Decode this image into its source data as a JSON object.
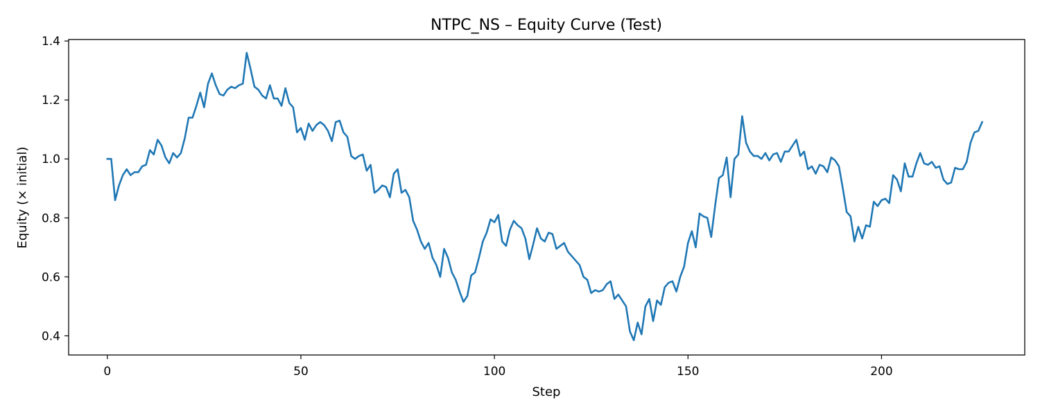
{
  "chart_data": {
    "type": "line",
    "title": "NTPC_NS – Equity Curve (Test)",
    "xlabel": "Step",
    "ylabel": "Equity (× initial)",
    "xlim": [
      -10,
      237
    ],
    "ylim": [
      0.335,
      1.405
    ],
    "xticks": [
      0,
      50,
      100,
      150,
      200
    ],
    "xtick_labels": [
      "0",
      "50",
      "100",
      "150",
      "200"
    ],
    "yticks": [
      0.4,
      0.6,
      0.8,
      1.0,
      1.2,
      1.4
    ],
    "ytick_labels": [
      "0.4",
      "0.6",
      "0.8",
      "1.0",
      "1.2",
      "1.4"
    ],
    "grid": false,
    "series": [
      {
        "color": "#1f77b4",
        "x_start": 0,
        "x_step": 1,
        "values": [
          1.0,
          1.0,
          0.86,
          0.91,
          0.945,
          0.965,
          0.945,
          0.955,
          0.955,
          0.975,
          0.98,
          1.03,
          1.015,
          1.065,
          1.045,
          1.005,
          0.985,
          1.02,
          1.005,
          1.02,
          1.07,
          1.14,
          1.14,
          1.18,
          1.225,
          1.175,
          1.255,
          1.29,
          1.25,
          1.22,
          1.215,
          1.235,
          1.245,
          1.24,
          1.25,
          1.255,
          1.36,
          1.305,
          1.245,
          1.235,
          1.215,
          1.205,
          1.25,
          1.205,
          1.205,
          1.18,
          1.24,
          1.19,
          1.175,
          1.09,
          1.105,
          1.065,
          1.12,
          1.095,
          1.115,
          1.125,
          1.115,
          1.095,
          1.06,
          1.125,
          1.13,
          1.09,
          1.075,
          1.01,
          1.0,
          1.01,
          1.015,
          0.96,
          0.98,
          0.885,
          0.895,
          0.91,
          0.905,
          0.87,
          0.95,
          0.965,
          0.885,
          0.895,
          0.87,
          0.79,
          0.76,
          0.72,
          0.695,
          0.715,
          0.665,
          0.64,
          0.6,
          0.695,
          0.665,
          0.615,
          0.59,
          0.55,
          0.515,
          0.535,
          0.605,
          0.615,
          0.665,
          0.72,
          0.75,
          0.795,
          0.785,
          0.81,
          0.72,
          0.705,
          0.76,
          0.79,
          0.775,
          0.765,
          0.73,
          0.66,
          0.71,
          0.765,
          0.73,
          0.72,
          0.75,
          0.745,
          0.695,
          0.705,
          0.715,
          0.685,
          0.67,
          0.655,
          0.64,
          0.6,
          0.59,
          0.545,
          0.555,
          0.55,
          0.555,
          0.575,
          0.585,
          0.525,
          0.54,
          0.52,
          0.5,
          0.415,
          0.385,
          0.445,
          0.405,
          0.5,
          0.525,
          0.45,
          0.52,
          0.505,
          0.565,
          0.58,
          0.585,
          0.55,
          0.6,
          0.635,
          0.715,
          0.755,
          0.7,
          0.815,
          0.805,
          0.8,
          0.735,
          0.84,
          0.935,
          0.945,
          1.005,
          0.87,
          1.0,
          1.015,
          1.145,
          1.055,
          1.025,
          1.01,
          1.01,
          1.0,
          1.02,
          0.995,
          1.015,
          1.02,
          0.99,
          1.025,
          1.025,
          1.045,
          1.065,
          1.01,
          1.025,
          0.965,
          0.975,
          0.95,
          0.98,
          0.975,
          0.955,
          1.005,
          0.995,
          0.975,
          0.9,
          0.82,
          0.805,
          0.72,
          0.77,
          0.73,
          0.775,
          0.77,
          0.855,
          0.84,
          0.86,
          0.865,
          0.85,
          0.945,
          0.93,
          0.89,
          0.985,
          0.94,
          0.94,
          0.985,
          1.02,
          0.985,
          0.98,
          0.99,
          0.97,
          0.975,
          0.93,
          0.915,
          0.92,
          0.97,
          0.965,
          0.965,
          0.99,
          1.055,
          1.09,
          1.095,
          1.125
        ]
      }
    ]
  }
}
